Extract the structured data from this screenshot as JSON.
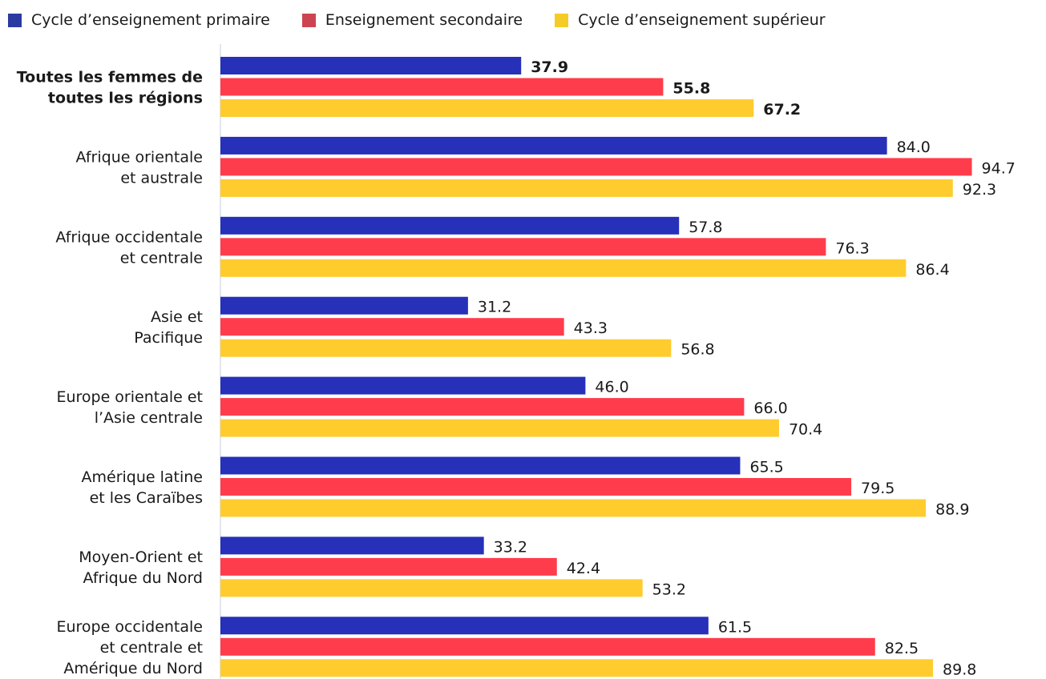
{
  "chart_data": {
    "type": "bar",
    "orientation": "horizontal",
    "categories": [
      "Toutes les femmes de toutes les régions",
      "Afrique orientale et australe",
      "Afrique occidentale et centrale",
      "Asie et Pacifique",
      "Europe orientale et l’Asie centrale",
      "Amérique latine et les Caraïbes",
      "Moyen-Orient et Afrique du Nord",
      "Europe occidentale et centrale et Amérique du Nord"
    ],
    "category_lines": [
      [
        "Toutes les femmes de",
        "toutes les régions"
      ],
      [
        "Afrique orientale",
        "et australe"
      ],
      [
        "Afrique occidentale",
        "et centrale"
      ],
      [
        "Asie et",
        "Pacifique"
      ],
      [
        "Europe orientale et",
        "l’Asie centrale"
      ],
      [
        "Amérique latine",
        "et les Caraïbes"
      ],
      [
        "Moyen-Orient et",
        "Afrique du Nord"
      ],
      [
        "Europe occidentale",
        "et centrale et",
        "Amérique du Nord"
      ]
    ],
    "series": [
      {
        "name": "Cycle d’enseignement primaire",
        "color": "#2630b8",
        "values": [
          37.9,
          84.0,
          57.8,
          31.2,
          46.0,
          65.5,
          33.2,
          61.5
        ],
        "labels": [
          "37.9",
          "84.0",
          "57.8",
          "31.2",
          "46.0",
          "65.5",
          "33.2",
          "61.5"
        ]
      },
      {
        "name": "Enseignement secondaire",
        "color": "#ff3c4c",
        "values": [
          55.8,
          94.7,
          76.3,
          43.3,
          66.0,
          79.5,
          42.4,
          82.5
        ],
        "labels": [
          "55.8",
          "94.7",
          "76.3",
          "43.3",
          "66.0",
          "79.5",
          "42.4",
          "82.5"
        ]
      },
      {
        "name": "Cycle d’enseignement supérieur",
        "color": "#ffcc2e",
        "values": [
          67.2,
          92.3,
          86.4,
          56.8,
          70.4,
          88.9,
          53.2,
          89.8
        ],
        "labels": [
          "67.2",
          "92.3",
          "86.4",
          "56.8",
          "70.4",
          "88.9",
          "53.2",
          "89.8"
        ]
      }
    ],
    "legend_colors": [
      "#2b3aa0",
      "#cc4450",
      "#f5cc26"
    ],
    "xlim": [
      0,
      100
    ],
    "legend_position": "top-left",
    "grid": false
  }
}
